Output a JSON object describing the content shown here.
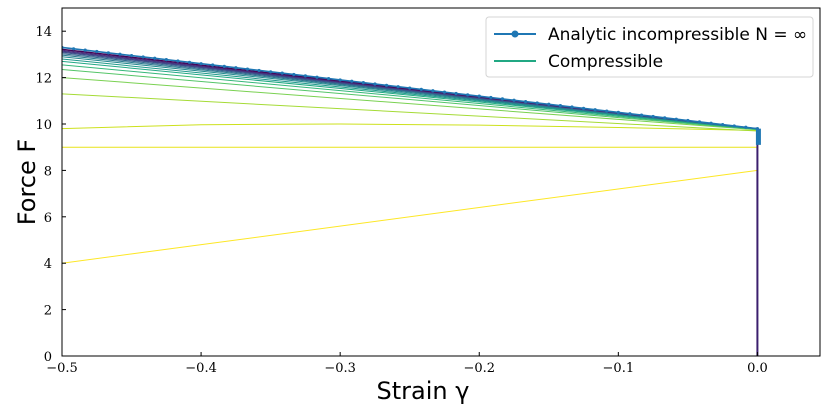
{
  "chart_data": {
    "type": "line",
    "xlabel": "Strain γ",
    "ylabel": "Force F",
    "xlim": [
      -0.5,
      0.045
    ],
    "ylim": [
      0,
      15
    ],
    "xticks": [
      -0.5,
      -0.4,
      -0.3,
      -0.2,
      -0.1,
      0.0
    ],
    "xtick_labels": [
      "−0.5",
      "−0.4",
      "−0.3",
      "−0.2",
      "−0.1",
      "0.0"
    ],
    "yticks": [
      0,
      2,
      4,
      6,
      8,
      10,
      12,
      14
    ],
    "ytick_labels": [
      "0",
      "2",
      "4",
      "6",
      "8",
      "10",
      "12",
      "14"
    ],
    "grid": false,
    "legend": {
      "position": "top-right",
      "entries": [
        {
          "label": "Analytic incompressible N = ∞",
          "color": "#1f77b4",
          "marker": "dot"
        },
        {
          "label": "Compressible",
          "color": "#21a883"
        }
      ]
    },
    "series": [
      {
        "name": "Analytic incompressible N = ∞",
        "color": "#1f77b4",
        "marker": "dot",
        "x": [
          -0.5,
          0.0
        ],
        "y": [
          13.3,
          9.8
        ]
      },
      {
        "name": "Compressible",
        "color": "#fde725",
        "x": [
          -0.5,
          0.0
        ],
        "y": [
          4.0,
          8.0
        ]
      },
      {
        "color": "#e8e419",
        "x": [
          -0.5,
          0.0
        ],
        "y": [
          9.0,
          9.0
        ]
      },
      {
        "color": "#cde11d",
        "x": [
          -0.5,
          -0.4,
          -0.3,
          -0.2,
          -0.1,
          0.0
        ],
        "y": [
          9.8,
          9.97,
          10.0,
          9.95,
          9.85,
          9.72
        ]
      },
      {
        "color": "#a5db36",
        "x": [
          -0.5,
          0.0
        ],
        "y": [
          11.3,
          9.7
        ]
      },
      {
        "color": "#7ad151",
        "x": [
          -0.5,
          0.0
        ],
        "y": [
          12.0,
          9.75
        ]
      },
      {
        "color": "#54c568",
        "x": [
          -0.5,
          0.0
        ],
        "y": [
          12.35,
          9.76
        ]
      },
      {
        "color": "#35b779",
        "x": [
          -0.5,
          0.0
        ],
        "y": [
          12.55,
          9.77
        ]
      },
      {
        "color": "#22a884",
        "x": [
          -0.5,
          0.0
        ],
        "y": [
          12.7,
          9.78
        ]
      },
      {
        "color": "#1f988b",
        "x": [
          -0.5,
          0.0
        ],
        "y": [
          12.8,
          9.79
        ]
      },
      {
        "color": "#23888e",
        "x": [
          -0.5,
          0.0
        ],
        "y": [
          12.9,
          9.79
        ]
      },
      {
        "color": "#2a788e",
        "x": [
          -0.5,
          0.0
        ],
        "y": [
          12.97,
          9.8
        ]
      },
      {
        "color": "#31688e",
        "x": [
          -0.5,
          0.0
        ],
        "y": [
          13.03,
          9.8
        ]
      },
      {
        "color": "#39568c",
        "x": [
          -0.5,
          0.0
        ],
        "y": [
          13.08,
          9.8
        ]
      },
      {
        "color": "#414487",
        "x": [
          -0.5,
          0.0
        ],
        "y": [
          13.12,
          9.8
        ]
      },
      {
        "color": "#472f7d",
        "x": [
          -0.5,
          0.0
        ],
        "y": [
          13.16,
          9.8
        ]
      },
      {
        "color": "#481a6c",
        "x": [
          -0.5,
          0.0
        ],
        "y": [
          13.2,
          9.8
        ]
      },
      {
        "color": "#440154",
        "x": [
          -0.5,
          0.0
        ],
        "y": [
          13.23,
          9.8
        ]
      }
    ],
    "vertical_line": {
      "x": 0.0,
      "y": [
        0,
        9.8
      ],
      "color": "#3b1f6e"
    },
    "endpoint_marker": {
      "x": 0.0,
      "y": [
        9.1,
        9.8
      ],
      "color": "#1f77b4"
    }
  }
}
